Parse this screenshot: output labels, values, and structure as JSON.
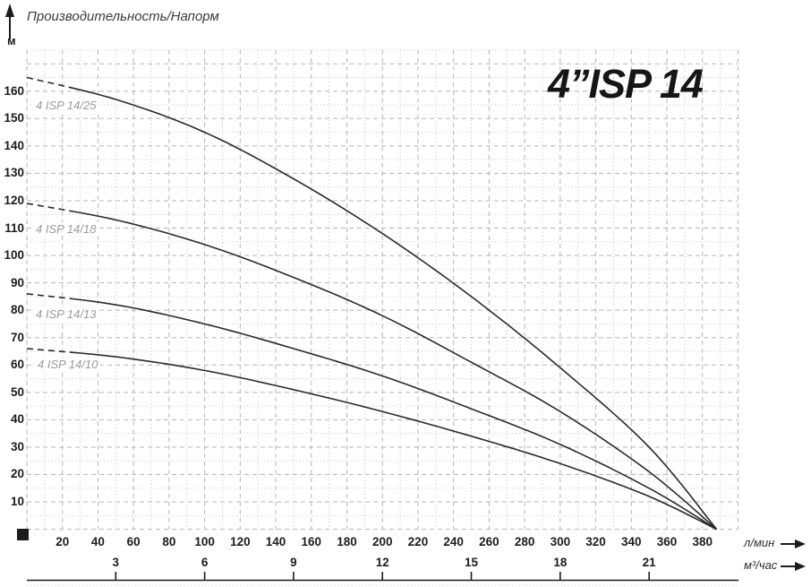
{
  "header": {
    "y_axis_title": "Производительность/Напорм",
    "y_unit": "м"
  },
  "title": "4”ISP 14",
  "axes": {
    "y": {
      "ticks": [
        10,
        20,
        30,
        40,
        50,
        60,
        70,
        80,
        90,
        100,
        110,
        120,
        130,
        140,
        150,
        160
      ],
      "max": 175
    },
    "x1": {
      "unit": "л/мин",
      "ticks": [
        20,
        40,
        60,
        80,
        100,
        120,
        140,
        160,
        180,
        200,
        220,
        240,
        260,
        280,
        300,
        320,
        340,
        360,
        380
      ],
      "max": 400
    },
    "x2": {
      "unit": "м³/час",
      "ticks": [
        3,
        6,
        9,
        12,
        15,
        18,
        21
      ]
    }
  },
  "colors": {
    "curve": "#2a2a2a",
    "grid_major": "#b5b5b5",
    "grid_minor": "#cdcdcd",
    "axis_line": "#1c1c1c",
    "label_gray": "#9a9a9a"
  },
  "chart_data": {
    "type": "line",
    "title": "4”ISP 14",
    "xlabel": "Производительность, л/мин (м³/час)",
    "ylabel": "Напор, м",
    "xlim": [
      0,
      400
    ],
    "ylim": [
      0,
      175
    ],
    "grid": true,
    "legend_position": "inline-left",
    "dashed_segment_end_x": 25,
    "series": [
      {
        "name": "4 ISP 14/25",
        "points": [
          [
            0,
            165
          ],
          [
            50,
            157
          ],
          [
            100,
            145
          ],
          [
            150,
            128
          ],
          [
            200,
            108
          ],
          [
            250,
            85
          ],
          [
            300,
            59
          ],
          [
            350,
            30
          ],
          [
            388,
            0
          ]
        ]
      },
      {
        "name": "4 ISP 14/18",
        "points": [
          [
            0,
            119
          ],
          [
            50,
            113
          ],
          [
            100,
            104
          ],
          [
            150,
            92
          ],
          [
            200,
            78
          ],
          [
            250,
            61
          ],
          [
            300,
            43
          ],
          [
            350,
            21
          ],
          [
            388,
            0
          ]
        ]
      },
      {
        "name": "4 ISP 14/13",
        "points": [
          [
            0,
            86
          ],
          [
            50,
            82
          ],
          [
            100,
            75
          ],
          [
            150,
            66
          ],
          [
            200,
            56
          ],
          [
            250,
            44
          ],
          [
            300,
            31
          ],
          [
            350,
            15
          ],
          [
            388,
            0
          ]
        ]
      },
      {
        "name": "4 ISP 14/10",
        "points": [
          [
            0,
            66
          ],
          [
            50,
            63
          ],
          [
            100,
            58
          ],
          [
            150,
            51
          ],
          [
            200,
            43
          ],
          [
            250,
            34
          ],
          [
            300,
            24
          ],
          [
            350,
            12
          ],
          [
            388,
            0
          ]
        ]
      }
    ]
  }
}
